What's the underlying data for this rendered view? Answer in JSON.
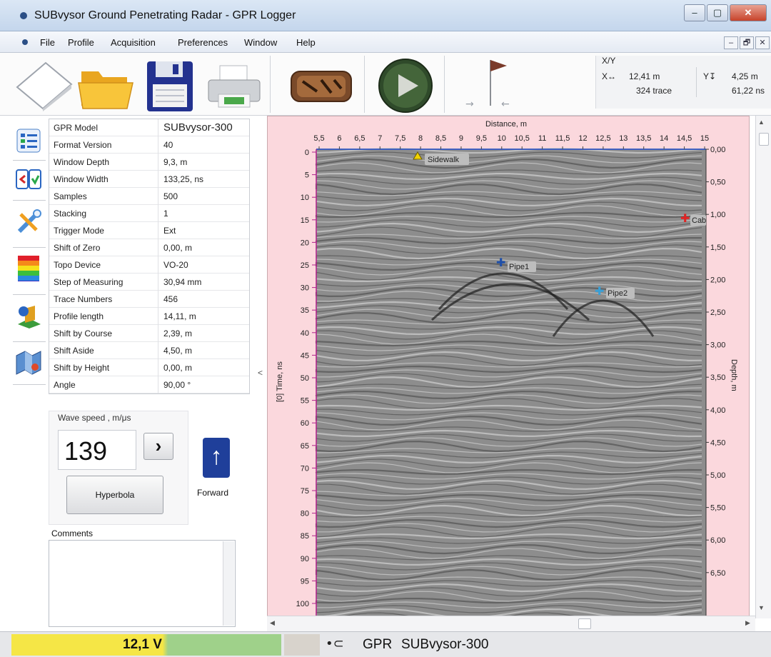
{
  "window": {
    "title": "SUBvysor Ground Penetrating Radar - GPR Logger",
    "minimize": "–",
    "maximize": "▢",
    "close": "✕"
  },
  "menu": {
    "items": [
      "File",
      "Profile",
      "Acquisition",
      "Preferences",
      "Window",
      "Help"
    ],
    "mdi_buttons": [
      "–",
      "🗗",
      "✕"
    ]
  },
  "toolbar": {
    "icons": [
      "new-document-icon",
      "open-folder-icon",
      "save-disk-icon",
      "printer-icon",
      "gpr-device-icon",
      "play-icon",
      "flag-marker-icon"
    ]
  },
  "coords": {
    "title": "X/Y",
    "x_glyph": "X↔",
    "x_value": "12,41 m",
    "x_trace": "324 trace",
    "y_glyph": "Y↧",
    "y_value": "4,25 m",
    "y_time": "61,22 ns"
  },
  "sidetools": {
    "icons": [
      "properties-list-icon",
      "compare-icon",
      "tools-wrench-icon",
      "color-palette-icon",
      "3d-view-icon",
      "map-icon"
    ]
  },
  "params": {
    "rows": [
      {
        "key": "GPR Model",
        "value": "SUBvysor-300"
      },
      {
        "key": "Format Version",
        "value": "40"
      },
      {
        "key": "Window Depth",
        "value": "9,3, m"
      },
      {
        "key": "Window Width",
        "value": "133,25, ns"
      },
      {
        "key": "Samples",
        "value": "500"
      },
      {
        "key": "Stacking",
        "value": "1"
      },
      {
        "key": "Trigger Mode",
        "value": "Ext"
      },
      {
        "key": "Shift of Zero",
        "value": "0,00, m"
      },
      {
        "key": "Topo Device",
        "value": "VO-20"
      },
      {
        "key": "Step of Measuring",
        "value": "30,94 mm"
      },
      {
        "key": "Trace Numbers",
        "value": "456"
      },
      {
        "key": "Profile length",
        "value": "14,11, m"
      },
      {
        "key": "Shift by Course",
        "value": "2,39, m"
      },
      {
        "key": "Shift Aside",
        "value": "4,50, m"
      },
      {
        "key": "Shift by Height",
        "value": "0,00, m"
      },
      {
        "key": "Angle",
        "value": "90,00 °"
      }
    ]
  },
  "wave": {
    "label": "Wave speed , m/μs",
    "value": "139",
    "next": "›",
    "hyperbola": "Hyperbola",
    "forward": "Forward",
    "forward_glyph": "↑"
  },
  "comments": {
    "label": "Comments",
    "text": ""
  },
  "collapse_glyph": "<",
  "plot": {
    "top_title": "Distance, m",
    "x_ticks": [
      "5,5",
      "6",
      "6,5",
      "7",
      "7,5",
      "8",
      "8,5",
      "9",
      "9,5",
      "10",
      "10,5",
      "11",
      "11,5",
      "12",
      "12,5",
      "13",
      "13,5",
      "14",
      "14,5",
      "15"
    ],
    "left_label": "[0] Time, ns",
    "t_ticks": [
      "0",
      "5",
      "10",
      "15",
      "20",
      "25",
      "30",
      "35",
      "40",
      "45",
      "50",
      "55",
      "60",
      "65",
      "70",
      "75",
      "80",
      "85",
      "90",
      "95",
      "100"
    ],
    "right_label": "Depth, m",
    "depth_ticks": [
      "0,00",
      "0,50",
      "1,00",
      "1,50",
      "2,00",
      "2,50",
      "3,00",
      "3,50",
      "4,00",
      "4,50",
      "5,00",
      "5,50",
      "6,00",
      "6,50"
    ],
    "markers": [
      {
        "label": "Sidewalk",
        "color": "#f2d200"
      },
      {
        "label": "Pipe1",
        "color": "#1f4fa8"
      },
      {
        "label": "Pipe2",
        "color": "#3a9fd6"
      },
      {
        "label": "Cab",
        "color": "#e02424"
      }
    ]
  },
  "status": {
    "voltage": "12,1 V",
    "device_prefix": "GPR",
    "device": "SUBvysor-300",
    "usb_glyph": "•⊂"
  }
}
